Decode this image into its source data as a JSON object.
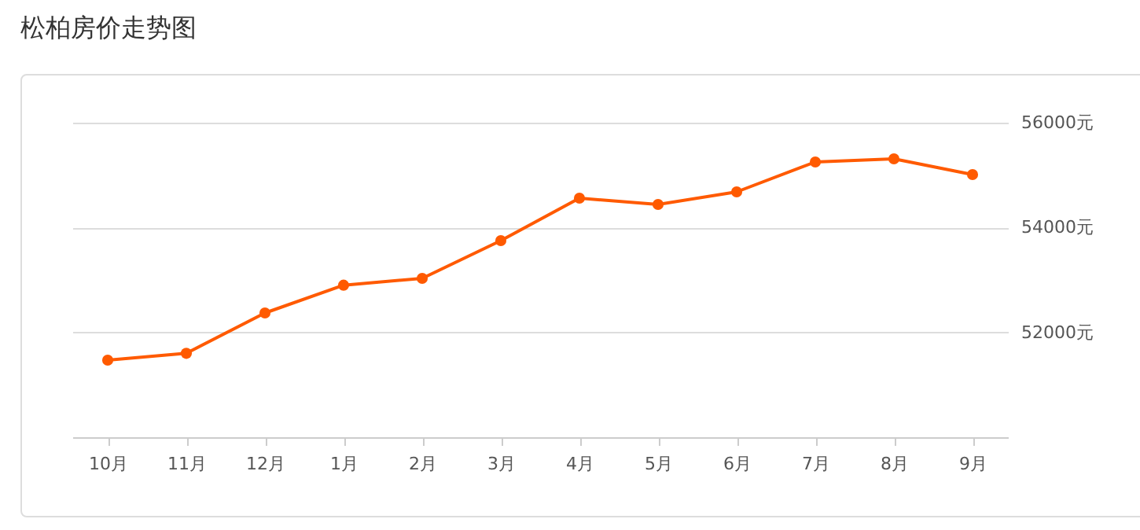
{
  "chart_data": {
    "type": "line",
    "title": "松柏房价走势图",
    "categories": [
      "10月",
      "11月",
      "12月",
      "1月",
      "2月",
      "3月",
      "4月",
      "5月",
      "6月",
      "7月",
      "8月",
      "9月"
    ],
    "series": [
      {
        "color": "#ff5a00",
        "values": [
          51470,
          51600,
          52370,
          52900,
          53030,
          53750,
          54560,
          54440,
          54680,
          55250,
          55310,
          55010
        ]
      }
    ],
    "ylim": [
      50000,
      56000
    ],
    "yticks": [
      {
        "value": 52000,
        "label": "52000元"
      },
      {
        "value": 54000,
        "label": "54000元"
      },
      {
        "value": 56000,
        "label": "56000元"
      }
    ],
    "grid": "y",
    "marker": "circle",
    "line_style": "solid"
  }
}
